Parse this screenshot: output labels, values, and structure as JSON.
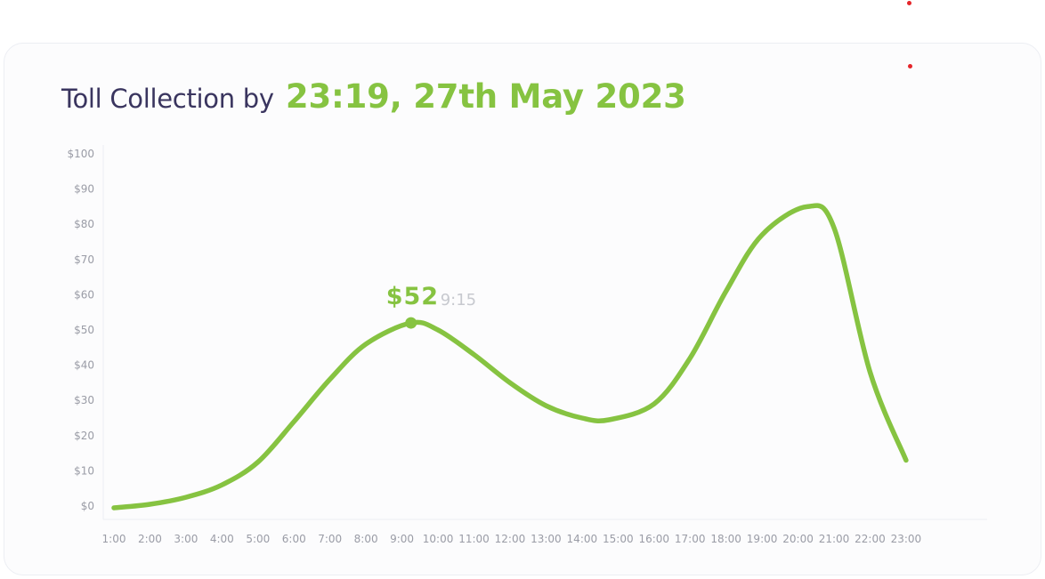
{
  "header": {
    "title_lead": "Toll Collection by",
    "title_stamp": "23:19, 27th May 2023"
  },
  "colors": {
    "accent": "#86c341",
    "title": "#3a355f",
    "tick": "#9a9ca6",
    "marker": "#e5252a"
  },
  "chart_data": {
    "type": "line",
    "title": "Toll Collection by 23:19, 27th May 2023",
    "xlabel": "",
    "ylabel": "",
    "ylim": [
      0,
      100
    ],
    "y_ticks": [
      "$0",
      "$10",
      "$20",
      "$30",
      "$40",
      "$50",
      "$60",
      "$70",
      "$80",
      "$90",
      "$100"
    ],
    "categories": [
      "1:00",
      "2:00",
      "3:00",
      "4:00",
      "5:00",
      "6:00",
      "7:00",
      "8:00",
      "9:00",
      "10:00",
      "11:00",
      "12:00",
      "13:00",
      "14:00",
      "15:00",
      "16:00",
      "17:00",
      "18:00",
      "19:00",
      "20:00",
      "21:00",
      "22:00",
      "23:00"
    ],
    "grid": false,
    "legend": "none",
    "series": [
      {
        "x": [
          "1:00",
          "2:00",
          "3:00",
          "4:00",
          "5:00",
          "6:00",
          "7:00",
          "8:00",
          "9:15",
          "10:00",
          "11:00",
          "12:00",
          "13:00",
          "14:00",
          "14:45",
          "16:00",
          "17:00",
          "18:00",
          "19:00",
          "20:15",
          "21:00",
          "22:00",
          "23:00"
        ],
        "x_hours": [
          1,
          2,
          3,
          4,
          5,
          6,
          7,
          8,
          9.25,
          10,
          11,
          12,
          13,
          14,
          14.75,
          16,
          17,
          18,
          19,
          20.25,
          21,
          22,
          23
        ],
        "values": [
          -0.5,
          0.5,
          2.5,
          6,
          12.5,
          24,
          36,
          46,
          52,
          50,
          43,
          35,
          28.5,
          25,
          24.5,
          29,
          42,
          61,
          77,
          85,
          79,
          38,
          13
        ]
      }
    ],
    "annotations": [
      {
        "value_label": "$52",
        "time_label": "9:15",
        "x_hour": 9.25,
        "y": 52
      }
    ]
  }
}
